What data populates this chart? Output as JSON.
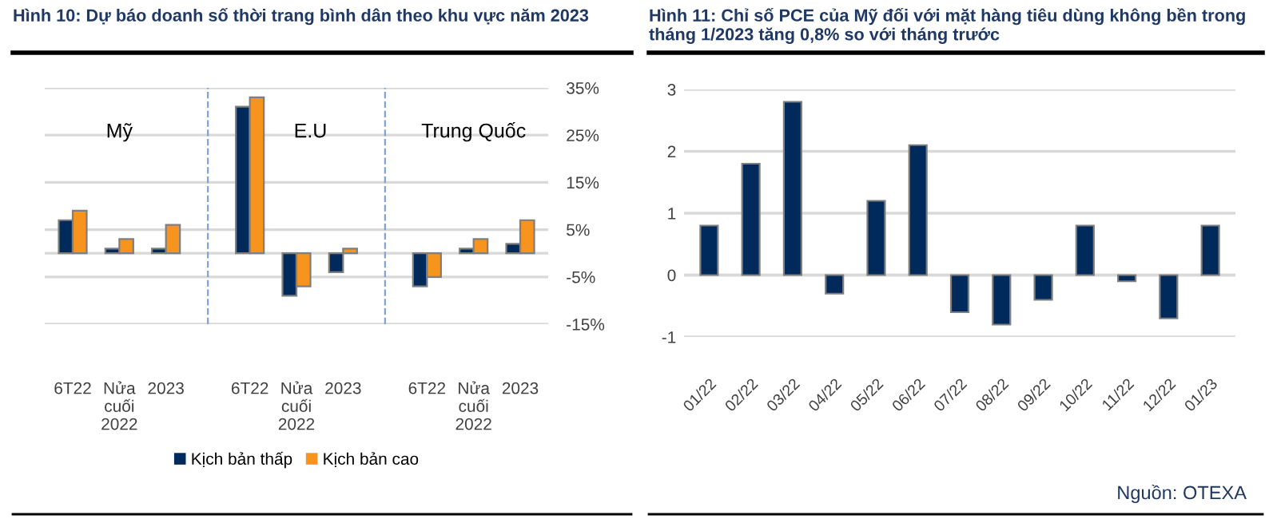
{
  "chart_data": [
    {
      "type": "bar",
      "title": "Hình 10: Dự báo doanh số thời trang bình dân theo khu vực năm 2023",
      "categories": [
        "6T22",
        "Nửa cuối 2022",
        "2023",
        "6T22",
        "Nửa cuối 2022",
        "2023",
        "6T22",
        "Nửa cuối 2022",
        "2023"
      ],
      "series": [
        {
          "name": "Kịch bản thấp",
          "color": "#002a5c",
          "values": [
            7,
            1,
            1,
            31,
            -9,
            -4,
            -7,
            1,
            2
          ]
        },
        {
          "name": "Kịch bản cao",
          "color": "#f7941d",
          "values": [
            9,
            3,
            6,
            33,
            -7,
            1,
            -5,
            3,
            7
          ]
        }
      ],
      "annotations": [
        "Mỹ",
        "E.U",
        "Trung Quốc"
      ],
      "ylim": [
        -15,
        35
      ],
      "yticks": [
        {
          "value": 35,
          "label": "35%"
        },
        {
          "value": 25,
          "label": "25%"
        },
        {
          "value": 15,
          "label": "15%"
        },
        {
          "value": 5,
          "label": "5%"
        },
        {
          "value": -5,
          "label": "-5%"
        },
        {
          "value": -15,
          "label": "-15%"
        }
      ],
      "grid": "y",
      "legend": "bottom"
    },
    {
      "type": "bar",
      "title": "Hình 11: Chỉ số PCE của Mỹ đối với mặt hàng tiêu dùng không bền trong tháng 1/2023 tăng 0,8% so với tháng trước",
      "categories": [
        "01/22",
        "02/22",
        "03/22",
        "04/22",
        "05/22",
        "06/22",
        "07/22",
        "08/22",
        "09/22",
        "10/22",
        "11/22",
        "12/22",
        "01/23"
      ],
      "series": [
        {
          "color": "#002a5c",
          "values": [
            0.8,
            1.8,
            2.8,
            -0.3,
            1.2,
            2.1,
            -0.6,
            -0.8,
            -0.4,
            0.8,
            -0.1,
            -0.7,
            0.8
          ]
        }
      ],
      "annotations": [
        "Nguồn: OTEXA"
      ],
      "ylim": [
        -1,
        3
      ],
      "yticks": [
        -1,
        0,
        1,
        2,
        3
      ],
      "grid": "y",
      "legend": false
    }
  ]
}
